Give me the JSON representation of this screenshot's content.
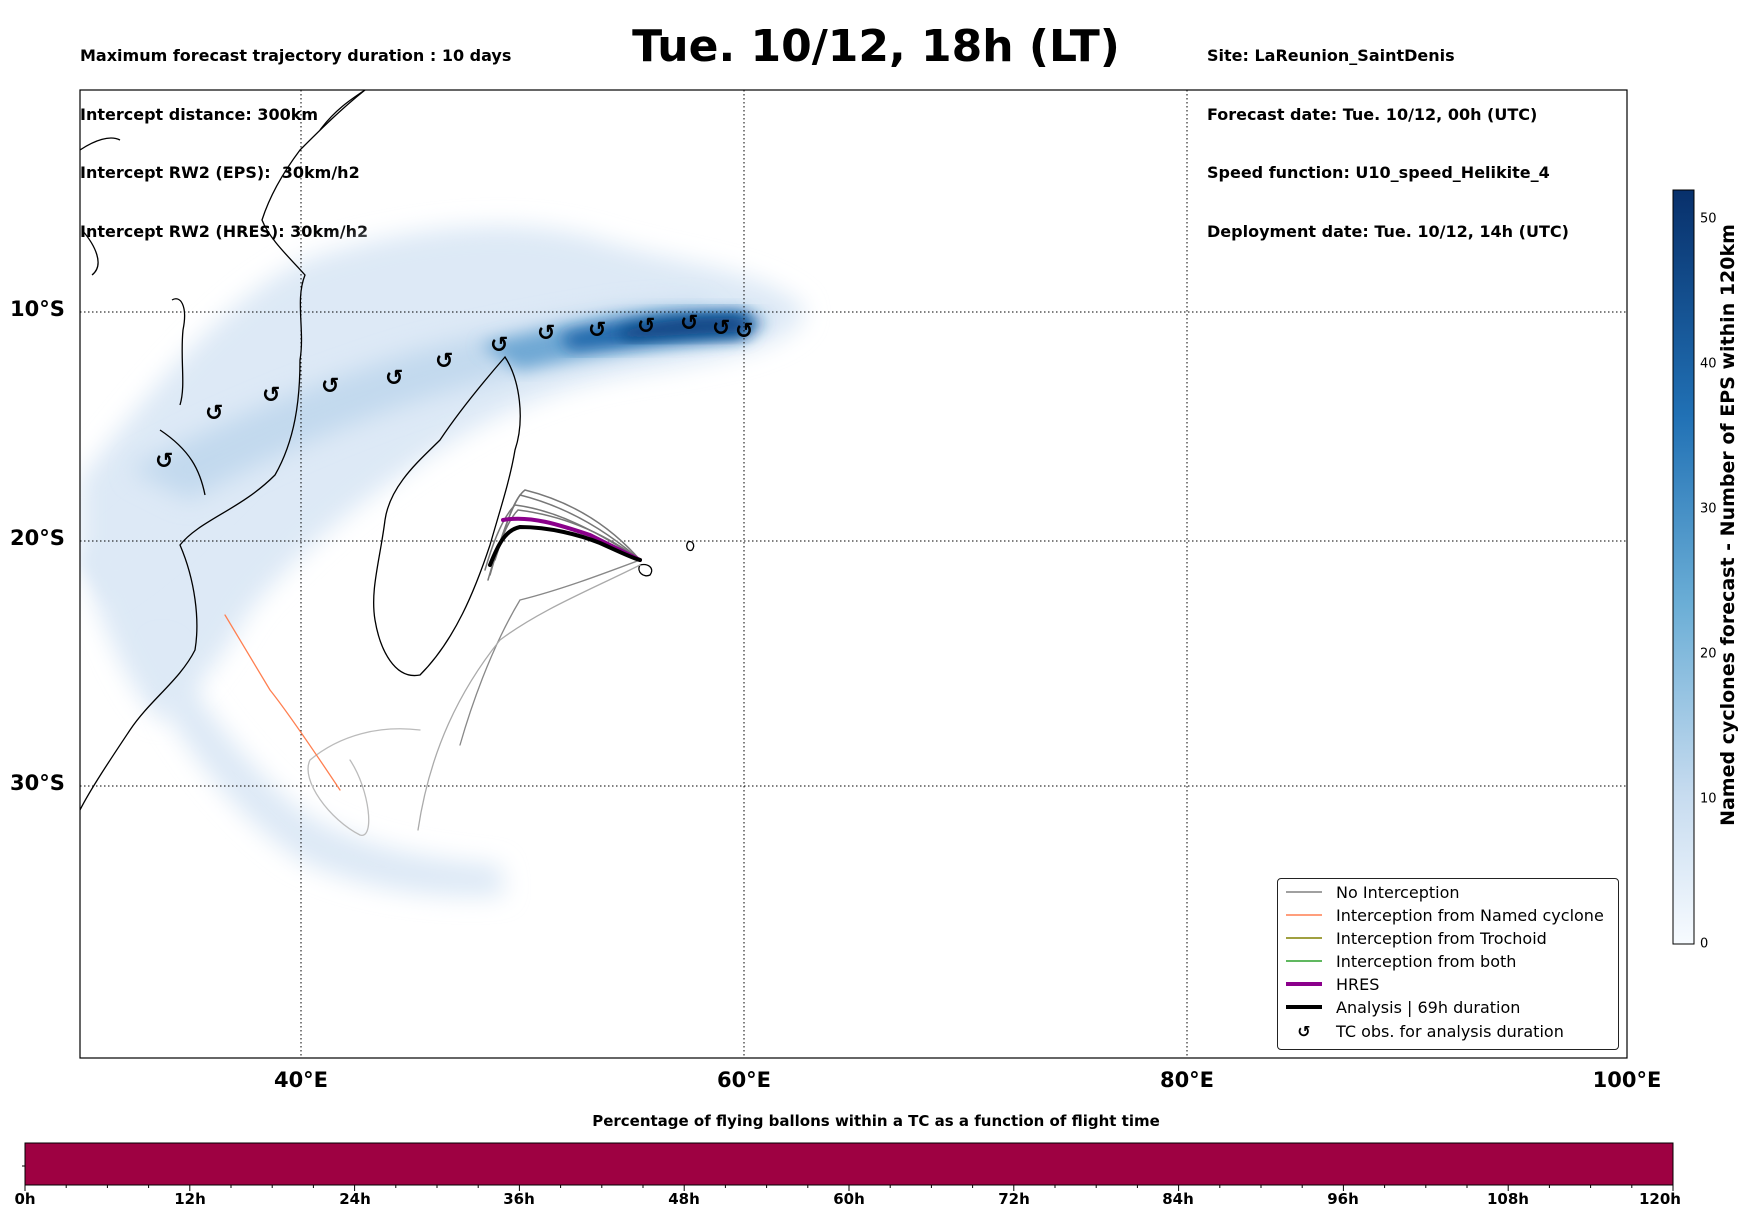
{
  "header": {
    "left_lines": [
      "Maximum forecast trajectory duration : 10 days",
      "Intercept distance: 300km",
      "Intercept RW2 (EPS):  30km/h2",
      "Intercept RW2 (HRES): 30km/h2"
    ],
    "title": "Tue. 10/12, 18h (LT)",
    "right_lines": [
      "Site: LaReunion_SaintDenis",
      "Forecast date: Tue. 10/12, 00h (UTC)",
      "Speed function: U10_speed_Helikite_4",
      "Deployment date: Tue. 10/12, 14h (UTC)"
    ]
  },
  "map": {
    "lat_labels": [
      "10°S",
      "20°S",
      "30°S"
    ],
    "lon_labels": [
      "40°E",
      "60°E",
      "80°E",
      "100°E"
    ],
    "colors": {
      "density_light": "#e3eef8",
      "density_dark": "#0b4a8f",
      "hres": "#8b008b",
      "analysis": "#000000",
      "no_interception": "#808080",
      "named_cyclone": "#ff7f50",
      "trochoid": "#808000",
      "both": "#2ca02c"
    }
  },
  "colorbar": {
    "label": "Named cyclones forecast - Number of EPS within 120km",
    "ticks": [
      "0",
      "10",
      "20",
      "30",
      "40",
      "50"
    ],
    "min": 0,
    "max": 52
  },
  "legend": {
    "items": [
      {
        "label": "No Interception",
        "icon": "line-gray"
      },
      {
        "label": "Interception from Named cyclone",
        "icon": "line-coral"
      },
      {
        "label": "Interception from Trochoid",
        "icon": "line-olive"
      },
      {
        "label": "Interception from both",
        "icon": "line-green"
      },
      {
        "label": "HRES",
        "icon": "line-purple-thick"
      },
      {
        "label": "Analysis | 69h duration",
        "icon": "line-black-thick"
      },
      {
        "label": "TC obs. for analysis duration",
        "icon": "cyclone-symbol"
      }
    ]
  },
  "flight_bar": {
    "title": "Percentage of flying ballons within a TC as a function of flight time",
    "color": "#9e0142",
    "ticks": [
      "0h",
      "12h",
      "24h",
      "36h",
      "48h",
      "60h",
      "72h",
      "84h",
      "96h",
      "108h",
      "120h"
    ]
  }
}
